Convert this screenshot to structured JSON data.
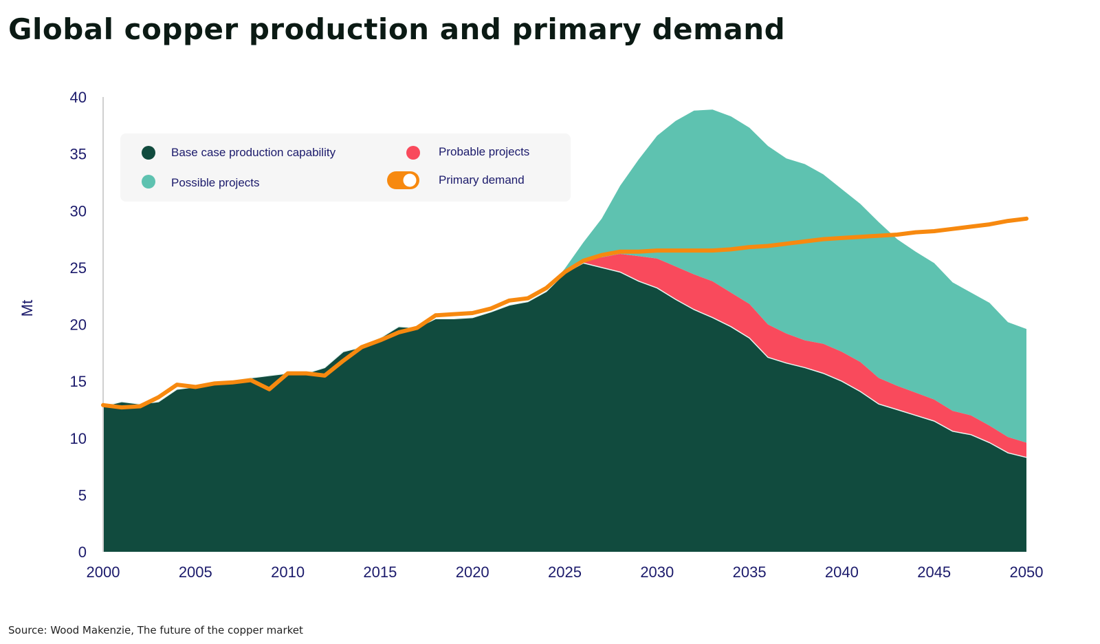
{
  "title": "Global copper production and primary demand",
  "source": "Source: Wood Makenzie, The future of the copper market",
  "chart_data": {
    "type": "area",
    "title": "Global copper production and primary demand",
    "ylabel": "Mt",
    "xlabel": "",
    "xlim": [
      2000,
      2050
    ],
    "ylim": [
      0,
      40
    ],
    "x_ticks": [
      "2000",
      "2005",
      "2010",
      "2015",
      "2020",
      "2025",
      "2030",
      "2035",
      "2040",
      "2045",
      "2050"
    ],
    "y_ticks": [
      "0",
      "5",
      "10",
      "15",
      "20",
      "25",
      "30",
      "35",
      "40"
    ],
    "grid": false,
    "legend_position": "top-left",
    "stacked": true,
    "x": [
      2000,
      2001,
      2002,
      2003,
      2004,
      2005,
      2006,
      2007,
      2008,
      2009,
      2010,
      2011,
      2012,
      2013,
      2014,
      2015,
      2016,
      2017,
      2018,
      2019,
      2020,
      2021,
      2022,
      2023,
      2024,
      2025,
      2026,
      2027,
      2028,
      2029,
      2030,
      2031,
      2032,
      2033,
      2034,
      2035,
      2036,
      2037,
      2038,
      2039,
      2040,
      2041,
      2042,
      2043,
      2044,
      2045,
      2046,
      2047,
      2048,
      2049,
      2050
    ],
    "series": [
      {
        "name": "Base case production capability",
        "kind": "area",
        "color": "#114b3e",
        "values": [
          12.8,
          13.2,
          13.0,
          13.2,
          14.3,
          14.5,
          14.8,
          15.0,
          15.3,
          15.5,
          15.7,
          15.7,
          16.2,
          17.6,
          18.0,
          18.8,
          19.8,
          19.7,
          20.5,
          20.5,
          20.6,
          21.1,
          21.7,
          22.0,
          22.9,
          24.5,
          25.4,
          25.0,
          24.6,
          23.8,
          23.2,
          22.2,
          21.3,
          20.6,
          19.8,
          18.8,
          17.1,
          16.6,
          16.2,
          15.7,
          15.0,
          14.1,
          13.0,
          12.5,
          12.0,
          11.5,
          10.6,
          10.3,
          9.6,
          8.7,
          8.3
        ]
      },
      {
        "name": "Probable projects",
        "kind": "area",
        "color": "#f94a5c",
        "values": [
          0,
          0,
          0,
          0,
          0,
          0,
          0,
          0,
          0,
          0,
          0,
          0,
          0,
          0,
          0,
          0,
          0,
          0,
          0,
          0,
          0,
          0,
          0,
          0,
          0,
          0,
          0.2,
          0.9,
          1.6,
          2.2,
          2.6,
          2.9,
          3.1,
          3.2,
          3.0,
          3.0,
          2.9,
          2.6,
          2.4,
          2.6,
          2.6,
          2.6,
          2.3,
          2.1,
          2.0,
          1.9,
          1.8,
          1.7,
          1.5,
          1.4,
          1.3
        ]
      },
      {
        "name": "Possible projects",
        "kind": "area",
        "color": "#5ec2b0",
        "values": [
          0,
          0,
          0,
          0,
          0,
          0,
          0,
          0,
          0,
          0,
          0,
          0,
          0,
          0,
          0,
          0,
          0,
          0,
          0,
          0,
          0,
          0,
          0,
          0,
          0,
          0.4,
          1.6,
          3.4,
          6.0,
          8.5,
          10.8,
          12.8,
          14.4,
          15.1,
          15.5,
          15.5,
          15.7,
          15.4,
          15.5,
          14.9,
          14.3,
          13.9,
          13.7,
          12.9,
          12.4,
          12.0,
          11.3,
          10.8,
          10.8,
          10.1,
          10.0
        ]
      },
      {
        "name": "Primary demand",
        "kind": "line",
        "color": "#f7890f",
        "values": [
          12.9,
          12.7,
          12.8,
          13.6,
          14.7,
          14.5,
          14.8,
          14.9,
          15.1,
          14.3,
          15.7,
          15.7,
          15.5,
          16.8,
          18.0,
          18.6,
          19.3,
          19.7,
          20.8,
          20.9,
          21.0,
          21.4,
          22.1,
          22.3,
          23.2,
          24.6,
          25.6,
          26.1,
          26.4,
          26.4,
          26.5,
          26.5,
          26.5,
          26.5,
          26.6,
          26.8,
          26.9,
          27.1,
          27.3,
          27.5,
          27.6,
          27.7,
          27.8,
          27.9,
          28.1,
          28.2,
          28.4,
          28.6,
          28.8,
          29.1,
          29.3
        ]
      }
    ],
    "legend": {
      "items": [
        {
          "label": "Base case production capability",
          "color": "#114b3e",
          "marker": "dot"
        },
        {
          "label": "Probable projects",
          "color": "#f94a5c",
          "marker": "dot"
        },
        {
          "label": "Possible projects",
          "color": "#5ec2b0",
          "marker": "dot"
        },
        {
          "label": "Primary demand",
          "color": "#f7890f",
          "marker": "toggle"
        }
      ]
    }
  }
}
